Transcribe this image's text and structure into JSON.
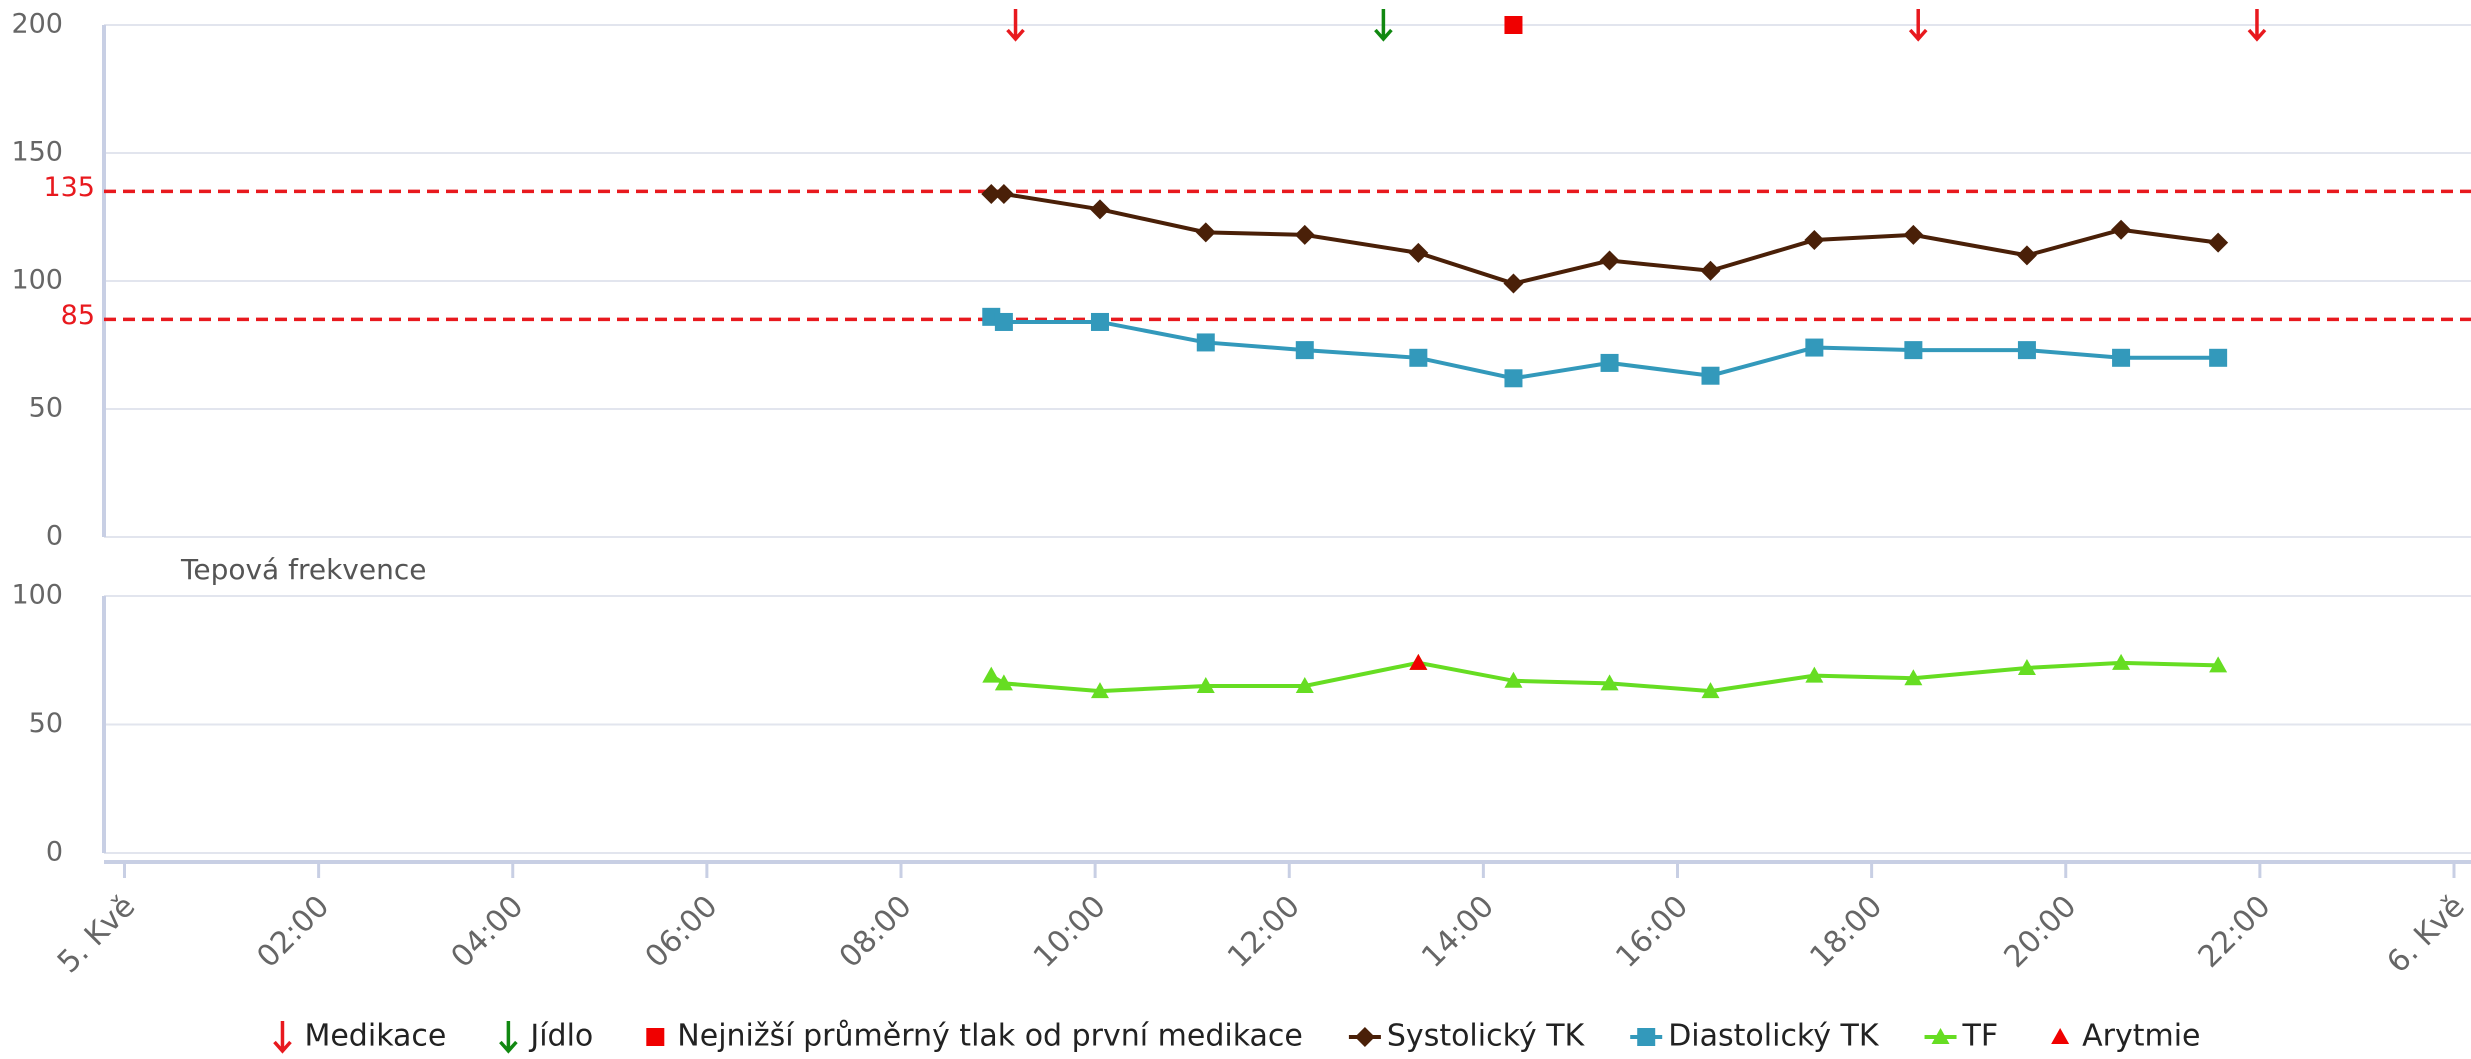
{
  "chart_data": [
    {
      "type": "line",
      "xlim": [
        0,
        24
      ],
      "ylim": [
        0,
        200
      ],
      "yticks": [
        0,
        50,
        100,
        150,
        200
      ],
      "grid": true,
      "plot_lines": [
        135,
        85
      ],
      "plot_line_color": "#e8191e",
      "series": [
        {
          "name": "Medikace",
          "color": "#e8191e",
          "marker": "arrow-down",
          "show_line": false,
          "x": [
            9.18,
            18.48,
            21.97
          ],
          "values": [
            200,
            200,
            200
          ]
        },
        {
          "name": "Jídlo",
          "color": "#118811",
          "marker": "arrow-down",
          "show_line": false,
          "x": [
            12.97
          ],
          "values": [
            200
          ]
        },
        {
          "name": "Nejnižší průměrný tlak od první medikace",
          "color": "#f00000",
          "marker": "square",
          "show_line": false,
          "x": [
            14.31
          ],
          "values": [
            200
          ]
        },
        {
          "name": "Systolický TK",
          "color": "#4a2008",
          "marker": "diamond",
          "show_line": true,
          "x": [
            8.93,
            9.06,
            10.05,
            11.14,
            12.16,
            13.33,
            14.31,
            15.3,
            16.34,
            17.41,
            18.43,
            19.6,
            20.57,
            21.57
          ],
          "values": [
            134,
            134,
            128,
            119,
            118,
            111,
            99,
            108,
            104,
            116,
            118,
            110,
            120,
            115
          ]
        },
        {
          "name": "Diastolický TK",
          "color": "#3399bb",
          "marker": "square",
          "show_line": true,
          "x": [
            8.93,
            9.06,
            10.05,
            11.14,
            12.16,
            13.33,
            14.31,
            15.3,
            16.34,
            17.41,
            18.43,
            19.6,
            20.57,
            21.57
          ],
          "values": [
            86,
            84,
            84,
            76,
            73,
            70,
            62,
            68,
            63,
            74,
            73,
            73,
            70,
            70
          ]
        }
      ]
    },
    {
      "type": "line",
      "title": "Tepová frekvence",
      "xlim": [
        0,
        24
      ],
      "ylim": [
        0,
        100
      ],
      "yticks": [
        0,
        50,
        100
      ],
      "grid": true,
      "xticks": [
        {
          "value": 0,
          "label": "5. Kvě"
        },
        {
          "value": 2,
          "label": "02:00"
        },
        {
          "value": 4,
          "label": "04:00"
        },
        {
          "value": 6,
          "label": "06:00"
        },
        {
          "value": 8,
          "label": "08:00"
        },
        {
          "value": 10,
          "label": "10:00"
        },
        {
          "value": 12,
          "label": "12:00"
        },
        {
          "value": 14,
          "label": "14:00"
        },
        {
          "value": 16,
          "label": "16:00"
        },
        {
          "value": 18,
          "label": "18:00"
        },
        {
          "value": 20,
          "label": "20:00"
        },
        {
          "value": 22,
          "label": "22:00"
        },
        {
          "value": 24,
          "label": "6. Kvě"
        }
      ],
      "series": [
        {
          "name": "TF",
          "color": "#66dd22",
          "marker": "triangle",
          "show_line": true,
          "x": [
            8.93,
            9.06,
            10.05,
            11.14,
            12.16,
            13.33,
            14.31,
            15.3,
            16.34,
            17.41,
            18.43,
            19.6,
            20.57,
            21.57
          ],
          "values": [
            69,
            66,
            63,
            65,
            65,
            74,
            67,
            66,
            63,
            69,
            68,
            72,
            74,
            73
          ]
        },
        {
          "name": "Arytmie",
          "color": "#f00000",
          "marker": "triangle",
          "show_line": false,
          "x": [
            13.33
          ],
          "values": [
            74
          ]
        }
      ]
    }
  ]
}
